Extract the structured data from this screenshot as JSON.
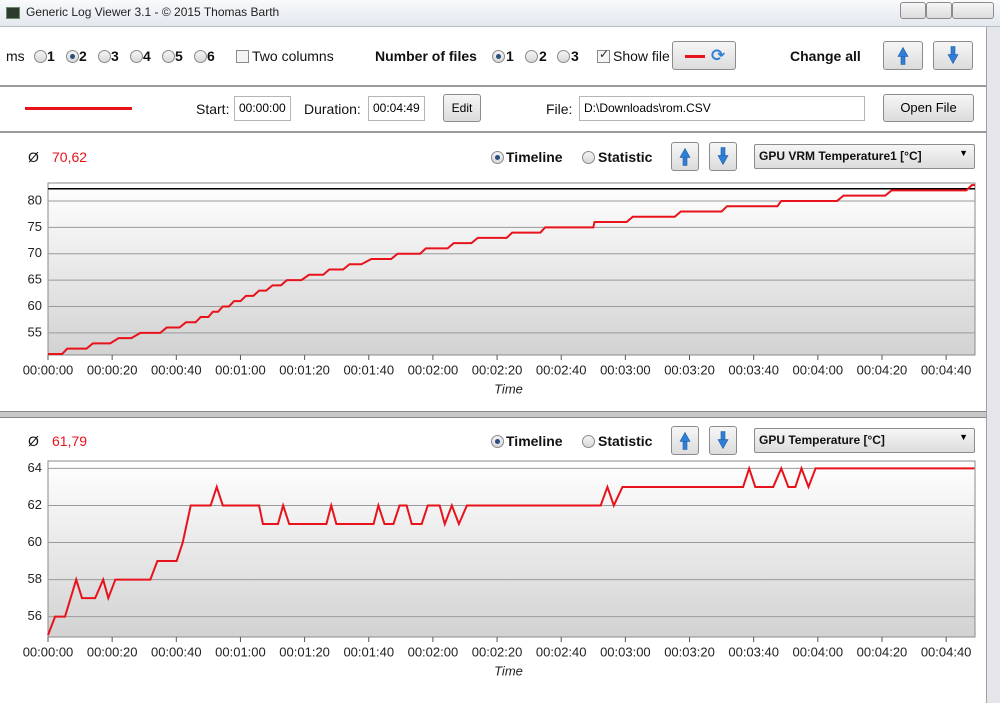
{
  "window": {
    "title": "Generic Log Viewer 3.1 - © 2015 Thomas Barth"
  },
  "toolbar": {
    "diagrams_label": "ms",
    "diagram_counts": [
      "1",
      "2",
      "3",
      "4",
      "5",
      "6"
    ],
    "two_columns": "Two columns",
    "number_of_files": "Number of files",
    "file_counts": [
      "1",
      "2",
      "3"
    ],
    "show_file": "Show file",
    "change_all": "Change all"
  },
  "file_row": {
    "start_label": "Start:",
    "start": "00:00:00",
    "duration_label": "Duration:",
    "duration": "00:04:49",
    "edit": "Edit",
    "file_label": "File:",
    "file": "D:\\Downloads\\rom.CSV",
    "open_file": "Open File"
  },
  "chart_data": [
    {
      "type": "line",
      "avg_symbol": "Ø",
      "average": "70,62",
      "modes": [
        "Timeline",
        "Statistic"
      ],
      "sensor": "GPU VRM Temperature1 [°C]",
      "x_label": "Time",
      "color": "#e8121b",
      "grid": true,
      "reference_line": {
        "value": 82.3,
        "color": "#000000"
      },
      "x": [
        0,
        4.4,
        6,
        12,
        14,
        19.4,
        22,
        26,
        28.8,
        35,
        37,
        41,
        43,
        46,
        47.6,
        50,
        51.4,
        53,
        54.5,
        56.4,
        58,
        60,
        61.7,
        64,
        65.8,
        68,
        70,
        72.6,
        74.5,
        79,
        81.4,
        85.8,
        87.7,
        92,
        94,
        97.7,
        100.8,
        107,
        109,
        116,
        117.8,
        124.6,
        126.5,
        132,
        134,
        143,
        144.7,
        153.5,
        155,
        170,
        170.4,
        180.4,
        182.3,
        195.4,
        197.3,
        210,
        211.7,
        227.4,
        228.6,
        246,
        248,
        261,
        263,
        286.3,
        288,
        289
      ],
      "values": [
        51,
        51,
        52,
        52,
        53,
        53,
        54,
        54,
        55,
        55,
        56,
        56,
        57,
        57,
        58,
        58,
        59,
        59,
        60,
        60,
        61,
        61,
        62,
        62,
        63,
        63,
        64,
        64,
        65,
        65,
        66,
        66,
        67,
        67,
        68,
        68,
        69,
        69,
        70,
        70,
        71,
        71,
        72,
        72,
        73,
        73,
        74,
        74,
        75,
        75,
        76,
        76,
        77,
        77,
        78,
        78,
        79,
        79,
        80,
        80,
        81,
        81,
        82,
        82,
        83,
        83
      ],
      "xlim": [
        0,
        289
      ],
      "xticks": [
        {
          "value": 0,
          "label": "00:00:00"
        },
        {
          "value": 20,
          "label": "00:00:20"
        },
        {
          "value": 40,
          "label": "00:00:40"
        },
        {
          "value": 60,
          "label": "00:01:00"
        },
        {
          "value": 80,
          "label": "00:01:20"
        },
        {
          "value": 100,
          "label": "00:01:40"
        },
        {
          "value": 120,
          "label": "00:02:00"
        },
        {
          "value": 140,
          "label": "00:02:20"
        },
        {
          "value": 160,
          "label": "00:02:40"
        },
        {
          "value": 180,
          "label": "00:03:00"
        },
        {
          "value": 200,
          "label": "00:03:20"
        },
        {
          "value": 220,
          "label": "00:03:40"
        },
        {
          "value": 240,
          "label": "00:04:00"
        },
        {
          "value": 260,
          "label": "00:04:20"
        },
        {
          "value": 280,
          "label": "00:04:40"
        }
      ],
      "ylim": [
        50.8,
        83.4
      ],
      "yticks": [
        55,
        60,
        65,
        70,
        75,
        80
      ]
    },
    {
      "type": "line",
      "avg_symbol": "Ø",
      "average": "61,79",
      "modes": [
        "Timeline",
        "Statistic"
      ],
      "sensor": "GPU Temperature [°C]",
      "x_label": "Time",
      "color": "#e8121b",
      "grid": true,
      "x": [
        0,
        2.2,
        5.3,
        8.8,
        10.6,
        14.7,
        17.2,
        18.8,
        21,
        31.9,
        34.1,
        40.1,
        42,
        44.5,
        50.7,
        52.6,
        54.5,
        65.8,
        67,
        71.7,
        73.3,
        75.2,
        86.8,
        88.3,
        89.9,
        101.5,
        103,
        104.9,
        107.7,
        109.6,
        111.8,
        113.4,
        116.5,
        118.4,
        122.1,
        123.7,
        125.9,
        128.1,
        130.6,
        172.3,
        174.4,
        176.4,
        179.1,
        216.7,
        218.6,
        220.5,
        226.1,
        228.6,
        230.8,
        233,
        234.9,
        237.1,
        239.3,
        288.8
      ],
      "values": [
        55,
        56,
        56,
        58,
        57,
        57,
        58,
        57,
        58,
        58,
        59,
        59,
        60,
        62,
        62,
        63,
        62,
        62,
        61,
        61,
        62,
        61,
        61,
        62,
        61,
        61,
        62,
        61,
        61,
        62,
        62,
        61,
        61,
        62,
        62,
        61,
        62,
        61,
        62,
        62,
        63,
        62,
        63,
        63,
        64,
        63,
        63,
        64,
        63,
        63,
        64,
        63,
        64,
        64
      ],
      "xlim": [
        0,
        289
      ],
      "xticks": [
        {
          "value": 0,
          "label": "00:00:00"
        },
        {
          "value": 20,
          "label": "00:00:20"
        },
        {
          "value": 40,
          "label": "00:00:40"
        },
        {
          "value": 60,
          "label": "00:01:00"
        },
        {
          "value": 80,
          "label": "00:01:20"
        },
        {
          "value": 100,
          "label": "00:01:40"
        },
        {
          "value": 120,
          "label": "00:02:00"
        },
        {
          "value": 140,
          "label": "00:02:20"
        },
        {
          "value": 160,
          "label": "00:02:40"
        },
        {
          "value": 180,
          "label": "00:03:00"
        },
        {
          "value": 200,
          "label": "00:03:20"
        },
        {
          "value": 220,
          "label": "00:03:40"
        },
        {
          "value": 240,
          "label": "00:04:00"
        },
        {
          "value": 260,
          "label": "00:04:20"
        },
        {
          "value": 280,
          "label": "00:04:40"
        }
      ],
      "ylim": [
        54.9,
        64.4
      ],
      "yticks": [
        56,
        58,
        60,
        62,
        64
      ]
    }
  ]
}
